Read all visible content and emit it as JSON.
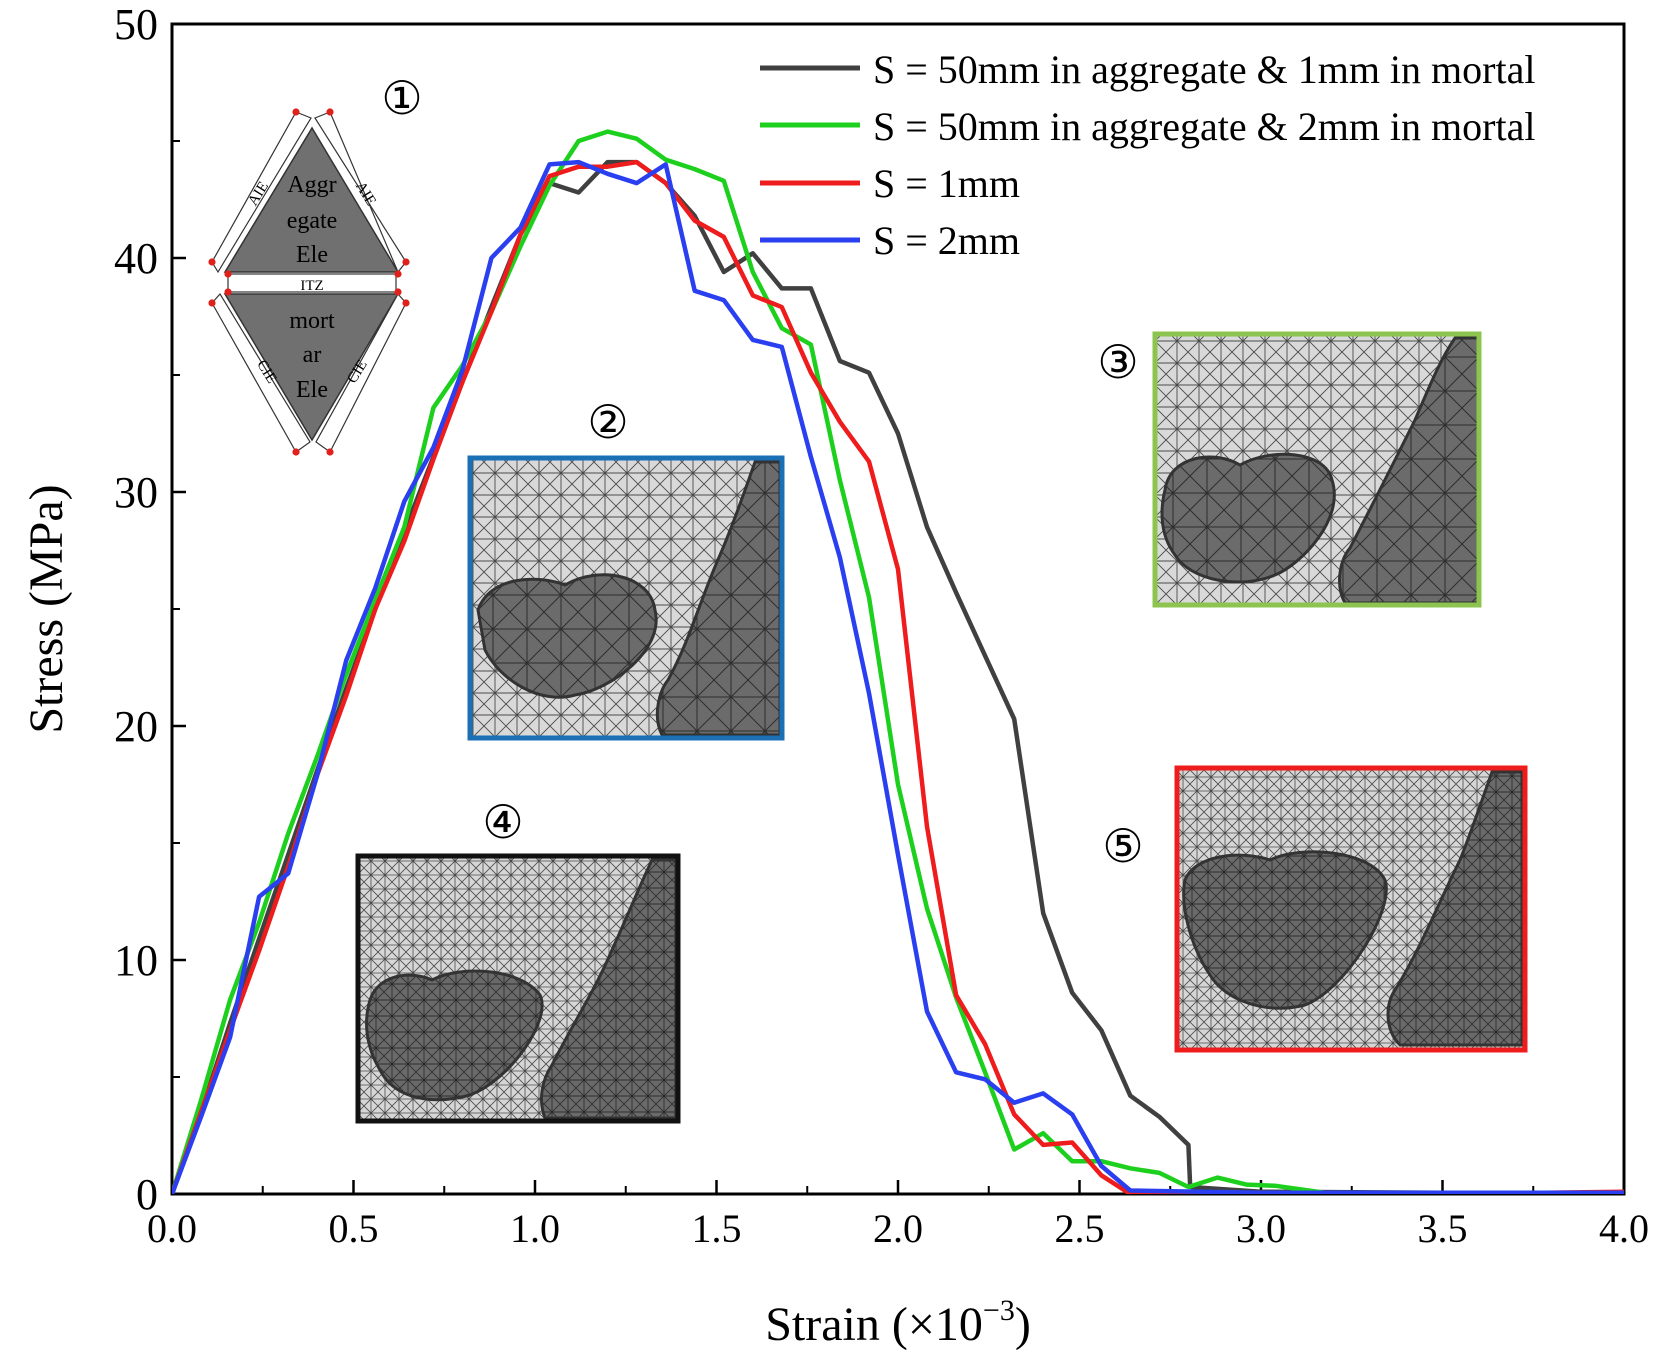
{
  "chart_data": {
    "type": "line",
    "xlabel": "Strain (×10",
    "xlabel_sup": "−3",
    "xlabel_close": ")",
    "ylabel": "Stress (MPa)",
    "xlim": [
      0,
      4
    ],
    "ylim": [
      0,
      50
    ],
    "xticks": [
      "0.0",
      "0.5",
      "1.0",
      "1.5",
      "2.0",
      "2.5",
      "3.0",
      "3.5",
      "4.0"
    ],
    "yticks": [
      "0",
      "10",
      "20",
      "30",
      "40",
      "50"
    ],
    "legend_position": "top-right",
    "series": [
      {
        "name": "S = 50mm in aggregate & 1mm in mortal",
        "color": "#404040",
        "points": [
          [
            0,
            0
          ],
          [
            0.08,
            3.5
          ],
          [
            0.16,
            7.3
          ],
          [
            0.24,
            10.9
          ],
          [
            0.32,
            14.5
          ],
          [
            0.4,
            18.1
          ],
          [
            0.48,
            21.6
          ],
          [
            0.56,
            25.0
          ],
          [
            0.64,
            28.3
          ],
          [
            0.72,
            31.5
          ],
          [
            0.8,
            34.7
          ],
          [
            0.88,
            37.9
          ],
          [
            0.96,
            41.0
          ],
          [
            1.04,
            43.2
          ],
          [
            1.12,
            42.8
          ],
          [
            1.2,
            44.1
          ],
          [
            1.28,
            44.1
          ],
          [
            1.36,
            43.2
          ],
          [
            1.44,
            41.8
          ],
          [
            1.52,
            39.4
          ],
          [
            1.6,
            40.2
          ],
          [
            1.68,
            38.7
          ],
          [
            1.76,
            38.7
          ],
          [
            1.84,
            35.6
          ],
          [
            1.92,
            35.1
          ],
          [
            2.0,
            32.5
          ],
          [
            2.08,
            28.5
          ],
          [
            2.16,
            25.7
          ],
          [
            2.24,
            23.0
          ],
          [
            2.32,
            20.3
          ],
          [
            2.4,
            12.0
          ],
          [
            2.48,
            8.6
          ],
          [
            2.56,
            7.0
          ],
          [
            2.64,
            4.2
          ],
          [
            2.72,
            3.3
          ],
          [
            2.8,
            2.1
          ],
          [
            2.805,
            0.3
          ],
          [
            3.0,
            0.1
          ],
          [
            3.5,
            0.05
          ],
          [
            4.0,
            0.05
          ]
        ]
      },
      {
        "name": "S = 50mm in aggregate & 2mm in mortal",
        "color": "#1ed01e",
        "points": [
          [
            0,
            0
          ],
          [
            0.08,
            4.0
          ],
          [
            0.16,
            8.3
          ],
          [
            0.24,
            11.6
          ],
          [
            0.32,
            15.4
          ],
          [
            0.4,
            18.7
          ],
          [
            0.48,
            22.2
          ],
          [
            0.56,
            25.4
          ],
          [
            0.64,
            28.5
          ],
          [
            0.72,
            33.6
          ],
          [
            0.8,
            35.4
          ],
          [
            0.88,
            37.7
          ],
          [
            0.96,
            40.5
          ],
          [
            1.04,
            43.1
          ],
          [
            1.12,
            45.0
          ],
          [
            1.2,
            45.4
          ],
          [
            1.28,
            45.1
          ],
          [
            1.36,
            44.2
          ],
          [
            1.44,
            43.8
          ],
          [
            1.52,
            43.3
          ],
          [
            1.6,
            39.4
          ],
          [
            1.68,
            37.0
          ],
          [
            1.76,
            36.3
          ],
          [
            1.84,
            30.5
          ],
          [
            1.92,
            25.5
          ],
          [
            2.0,
            17.5
          ],
          [
            2.08,
            12.2
          ],
          [
            2.16,
            8.4
          ],
          [
            2.24,
            5.2
          ],
          [
            2.32,
            1.9
          ],
          [
            2.4,
            2.6
          ],
          [
            2.48,
            1.4
          ],
          [
            2.56,
            1.4
          ],
          [
            2.64,
            1.1
          ],
          [
            2.72,
            0.9
          ],
          [
            2.8,
            0.3
          ],
          [
            2.88,
            0.7
          ],
          [
            2.96,
            0.4
          ],
          [
            3.04,
            0.35
          ],
          [
            3.2,
            0.0
          ],
          [
            3.5,
            0.0
          ],
          [
            4.0,
            0.0
          ]
        ]
      },
      {
        "name": "S = 1mm",
        "color": "#ee1c1c",
        "points": [
          [
            0,
            0
          ],
          [
            0.08,
            3.5
          ],
          [
            0.16,
            7.0
          ],
          [
            0.24,
            10.4
          ],
          [
            0.32,
            14.0
          ],
          [
            0.4,
            17.9
          ],
          [
            0.48,
            21.3
          ],
          [
            0.56,
            25.0
          ],
          [
            0.64,
            27.9
          ],
          [
            0.72,
            31.4
          ],
          [
            0.8,
            34.7
          ],
          [
            0.88,
            37.7
          ],
          [
            0.96,
            41.0
          ],
          [
            1.04,
            43.5
          ],
          [
            1.12,
            43.9
          ],
          [
            1.2,
            43.9
          ],
          [
            1.28,
            44.1
          ],
          [
            1.36,
            43.2
          ],
          [
            1.44,
            41.6
          ],
          [
            1.52,
            40.9
          ],
          [
            1.6,
            38.4
          ],
          [
            1.68,
            37.9
          ],
          [
            1.76,
            35.1
          ],
          [
            1.84,
            33.0
          ],
          [
            1.92,
            31.3
          ],
          [
            2.0,
            26.7
          ],
          [
            2.08,
            15.7
          ],
          [
            2.16,
            8.5
          ],
          [
            2.24,
            6.4
          ],
          [
            2.32,
            3.4
          ],
          [
            2.4,
            2.1
          ],
          [
            2.48,
            2.2
          ],
          [
            2.56,
            0.8
          ],
          [
            2.64,
            0.0
          ],
          [
            3.0,
            0.0
          ],
          [
            3.5,
            0.0
          ],
          [
            4.0,
            0.1
          ]
        ]
      },
      {
        "name": "S = 2mm",
        "color": "#2a3ff0",
        "points": [
          [
            0,
            0
          ],
          [
            0.08,
            3.3
          ],
          [
            0.16,
            6.7
          ],
          [
            0.24,
            12.7
          ],
          [
            0.32,
            13.7
          ],
          [
            0.4,
            17.9
          ],
          [
            0.48,
            22.8
          ],
          [
            0.56,
            25.9
          ],
          [
            0.64,
            29.6
          ],
          [
            0.72,
            31.9
          ],
          [
            0.8,
            35.2
          ],
          [
            0.88,
            40.0
          ],
          [
            0.96,
            41.3
          ],
          [
            1.04,
            44.0
          ],
          [
            1.12,
            44.1
          ],
          [
            1.2,
            43.6
          ],
          [
            1.28,
            43.2
          ],
          [
            1.36,
            44.0
          ],
          [
            1.44,
            38.6
          ],
          [
            1.52,
            38.2
          ],
          [
            1.6,
            36.5
          ],
          [
            1.68,
            36.2
          ],
          [
            1.76,
            31.5
          ],
          [
            1.84,
            27.2
          ],
          [
            1.92,
            21.4
          ],
          [
            2.0,
            14.5
          ],
          [
            2.08,
            7.8
          ],
          [
            2.16,
            5.2
          ],
          [
            2.24,
            4.9
          ],
          [
            2.32,
            3.9
          ],
          [
            2.4,
            4.3
          ],
          [
            2.48,
            3.4
          ],
          [
            2.56,
            1.2
          ],
          [
            2.64,
            0.15
          ],
          [
            3.0,
            0.05
          ],
          [
            3.5,
            0.05
          ],
          [
            4.0,
            0.05
          ]
        ]
      }
    ],
    "annotations": [
      "①",
      "②",
      "③",
      "④",
      "⑤"
    ],
    "element_labels": {
      "aggregate": [
        "Aggr",
        "egate",
        "Ele"
      ],
      "mortar": [
        "mort",
        "ar",
        "Ele"
      ],
      "itz": "ITZ",
      "aie": "AIE",
      "cie": "CIE"
    },
    "inset_frame_colors": {
      "blue": "#1a6fb5",
      "green": "#8cc44f",
      "black": "#111111",
      "red": "#ee1c1c"
    }
  }
}
